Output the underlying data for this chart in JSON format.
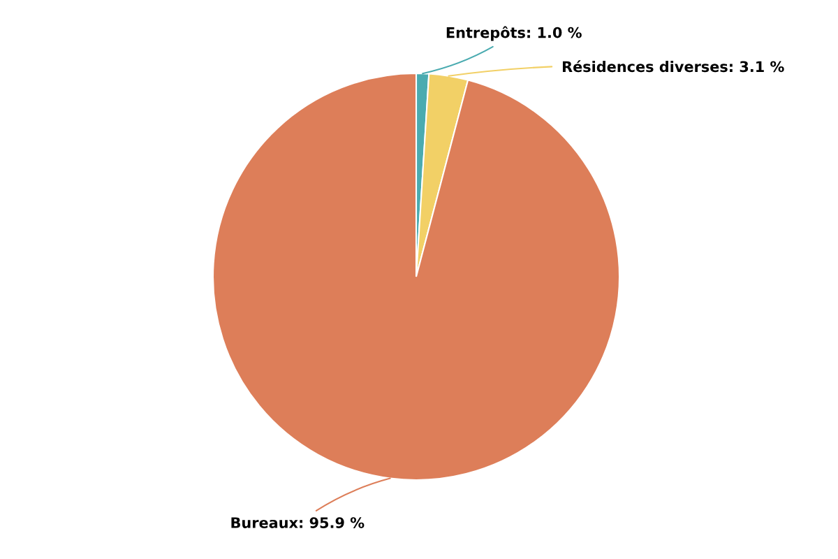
{
  "chart_data": {
    "type": "pie",
    "categories": [
      "Entrepôts",
      "Résidences diverses",
      "Bureaux"
    ],
    "values": [
      1.0,
      3.1,
      95.9
    ],
    "colors": [
      "#4aabb0",
      "#f2d066",
      "#dd7e59"
    ],
    "value_labels": [
      "1.0 %",
      "3.1 %",
      "95.9 %"
    ]
  }
}
